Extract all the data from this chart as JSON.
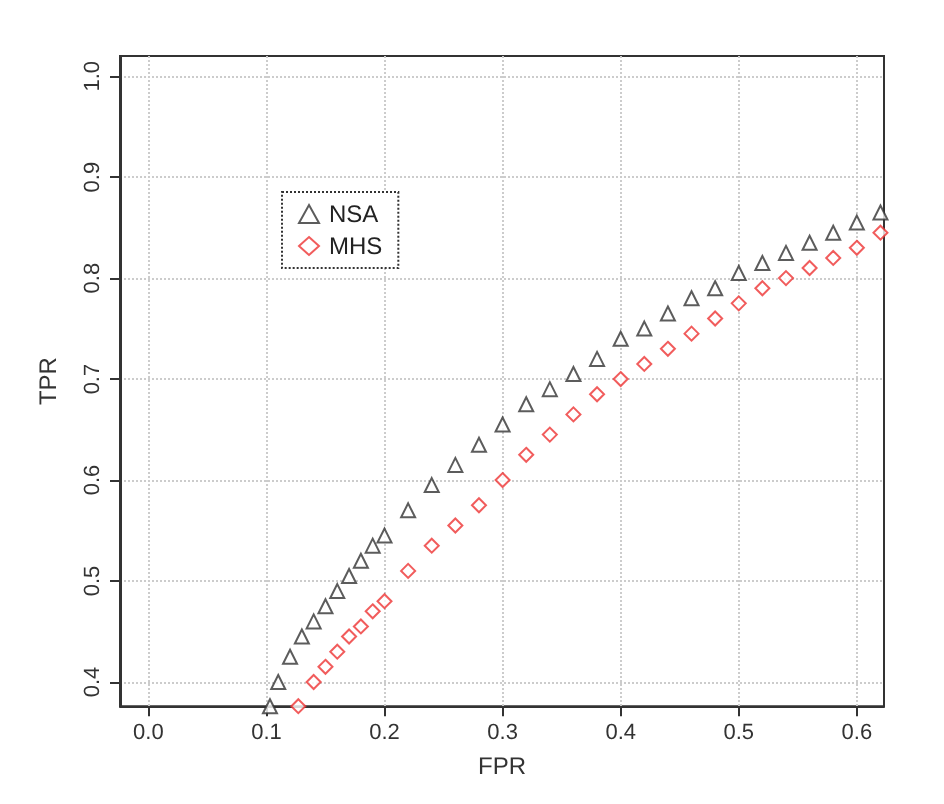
{
  "chart_data": {
    "type": "scatter",
    "xlabel": "FPR",
    "ylabel": "TPR",
    "xlim": [
      -0.024,
      0.623
    ],
    "ylim": [
      0.376,
      1.02
    ],
    "xticks": [
      {
        "value": 0,
        "label": "0.0"
      },
      0.1,
      0.2,
      0.3,
      0.4,
      0.5,
      0.6
    ],
    "yticks": [
      0.4,
      0.5,
      0.6,
      0.7,
      0.8,
      0.9,
      {
        "value": 1,
        "label": "1.0"
      }
    ],
    "grid": true,
    "legend": "top left",
    "series": [
      {
        "name": "NSA",
        "color": "#333333",
        "marker": "triangle",
        "x": [
          0.103,
          0.11,
          0.12,
          0.13,
          0.14,
          0.15,
          0.16,
          0.17,
          0.18,
          0.19,
          0.2,
          0.22,
          0.24,
          0.26,
          0.28,
          0.3,
          0.32,
          0.34,
          0.36,
          0.38,
          0.4,
          0.42,
          0.44,
          0.46,
          0.48,
          0.5,
          0.52,
          0.54,
          0.56,
          0.58,
          0.6,
          0.62
        ],
        "values": [
          0.376,
          0.4,
          0.425,
          0.445,
          0.46,
          0.475,
          0.49,
          0.505,
          0.52,
          0.535,
          0.545,
          0.57,
          0.595,
          0.615,
          0.635,
          0.655,
          0.675,
          0.69,
          0.705,
          0.72,
          0.74,
          0.75,
          0.765,
          0.78,
          0.79,
          0.805,
          0.815,
          0.825,
          0.835,
          0.845,
          0.855,
          0.865
        ]
      },
      {
        "name": "MHS",
        "color": "#ee3333",
        "marker": "diamond",
        "x": [
          0.127,
          0.14,
          0.15,
          0.16,
          0.17,
          0.18,
          0.19,
          0.2,
          0.22,
          0.24,
          0.26,
          0.28,
          0.3,
          0.32,
          0.34,
          0.36,
          0.38,
          0.4,
          0.42,
          0.44,
          0.46,
          0.48,
          0.5,
          0.52,
          0.54,
          0.56,
          0.58,
          0.6,
          0.62
        ],
        "values": [
          0.376,
          0.4,
          0.415,
          0.43,
          0.445,
          0.455,
          0.47,
          0.48,
          0.51,
          0.535,
          0.555,
          0.575,
          0.6,
          0.625,
          0.645,
          0.665,
          0.685,
          0.7,
          0.715,
          0.73,
          0.745,
          0.76,
          0.775,
          0.79,
          0.8,
          0.81,
          0.82,
          0.83,
          0.845
        ]
      }
    ]
  }
}
